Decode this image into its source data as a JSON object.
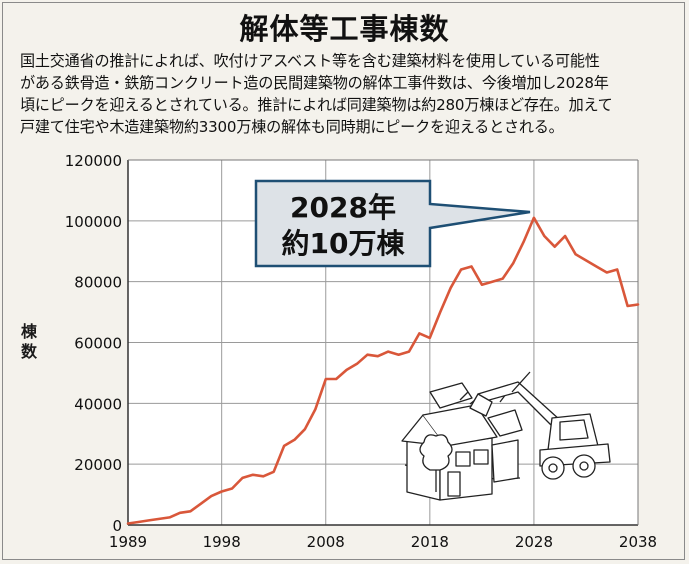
{
  "title": "解体等工事棟数",
  "description_lines": [
    "国土交通省の推計によれば、吹付けアスベスト等を含む建築材料を使用している可能性",
    "がある鉄骨造・鉄筋コンクリート造の民間建築物の解体工事件数は、今後増加し2028年",
    "頃にピークを迎えるとされている。推計によれば同建築物は約280万棟ほど存在。加えて",
    "戸建て住宅や木造建築物約3300万棟の解体も同時期にピークを迎えるとされる。"
  ],
  "callout": {
    "line1": "2028年",
    "line2": "約10万棟"
  },
  "colors": {
    "line": "#d9573a",
    "background": "#f4f2ec",
    "callout_bg": "#dde2e7",
    "callout_border": "#1e4f74"
  },
  "illustration": "demolition-excavator-house-illustration",
  "chart_data": {
    "type": "line",
    "title": "",
    "xlabel": "",
    "ylabel": "棟数",
    "xlim": [
      1989,
      2038
    ],
    "ylim": [
      0,
      120000
    ],
    "grid": true,
    "x_ticks": [
      1989,
      1998,
      2008,
      2018,
      2028,
      2038
    ],
    "y_ticks": [
      0,
      20000,
      40000,
      60000,
      80000,
      100000,
      120000
    ],
    "x_tick_labels": [
      "1989",
      "1998",
      "2008",
      "2018",
      "2028",
      "2038"
    ],
    "y_tick_labels": [
      "0",
      "20000",
      "40000",
      "60000",
      "80000",
      "100000",
      "120000"
    ],
    "series": [
      {
        "name": "",
        "x": [
          1989,
          1990,
          1991,
          1992,
          1993,
          1994,
          1995,
          1996,
          1997,
          1998,
          1999,
          2000,
          2001,
          2002,
          2003,
          2004,
          2005,
          2006,
          2007,
          2008,
          2009,
          2010,
          2011,
          2012,
          2013,
          2014,
          2015,
          2016,
          2017,
          2018,
          2019,
          2020,
          2021,
          2022,
          2023,
          2024,
          2025,
          2026,
          2027,
          2028,
          2029,
          2030,
          2031,
          2032,
          2033,
          2034,
          2035,
          2036,
          2037,
          2038
        ],
        "y": [
          500,
          1000,
          1500,
          2000,
          2500,
          4000,
          4500,
          7000,
          9500,
          11000,
          12000,
          15500,
          16500,
          16000,
          17500,
          26000,
          28000,
          31500,
          38000,
          48000,
          48000,
          51000,
          53000,
          56000,
          55500,
          57000,
          56000,
          57000,
          63000,
          61500,
          70000,
          78000,
          84000,
          85000,
          79000,
          80000,
          81000,
          86000,
          93000,
          101000,
          95000,
          91500,
          95000,
          89000,
          87000,
          85000,
          83000,
          84000,
          72000,
          72500
        ]
      }
    ]
  }
}
